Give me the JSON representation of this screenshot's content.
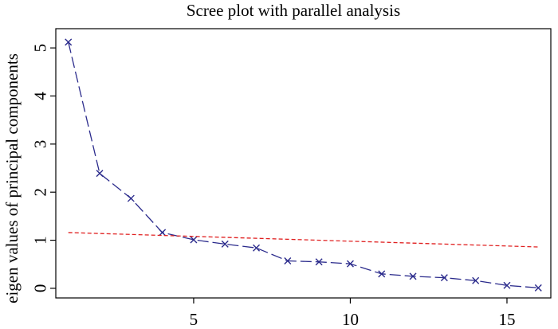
{
  "chart_data": {
    "type": "line",
    "title": "Scree plot with parallel analysis",
    "xlabel": "",
    "ylabel": "eigen values of principal components",
    "xlim": [
      0.6,
      16.4
    ],
    "ylim": [
      -0.2,
      5.4
    ],
    "x_ticks": [
      5,
      10,
      15
    ],
    "y_ticks": [
      0,
      1,
      2,
      3,
      4,
      5
    ],
    "series": [
      {
        "line_color": "#2b2b8c",
        "marker": "x",
        "line_style": "long-dash",
        "x": [
          1,
          2,
          3,
          4,
          5,
          6,
          7,
          8,
          9,
          10,
          11,
          12,
          13,
          14,
          15,
          16
        ],
        "values": [
          5.12,
          2.39,
          1.87,
          1.16,
          1.01,
          0.92,
          0.84,
          0.57,
          0.55,
          0.51,
          0.3,
          0.25,
          0.22,
          0.16,
          0.06,
          0.01
        ]
      },
      {
        "line_color": "#e02020",
        "marker": "none",
        "line_style": "dashed",
        "x": [
          1,
          16
        ],
        "values": [
          1.16,
          0.86
        ]
      }
    ]
  }
}
